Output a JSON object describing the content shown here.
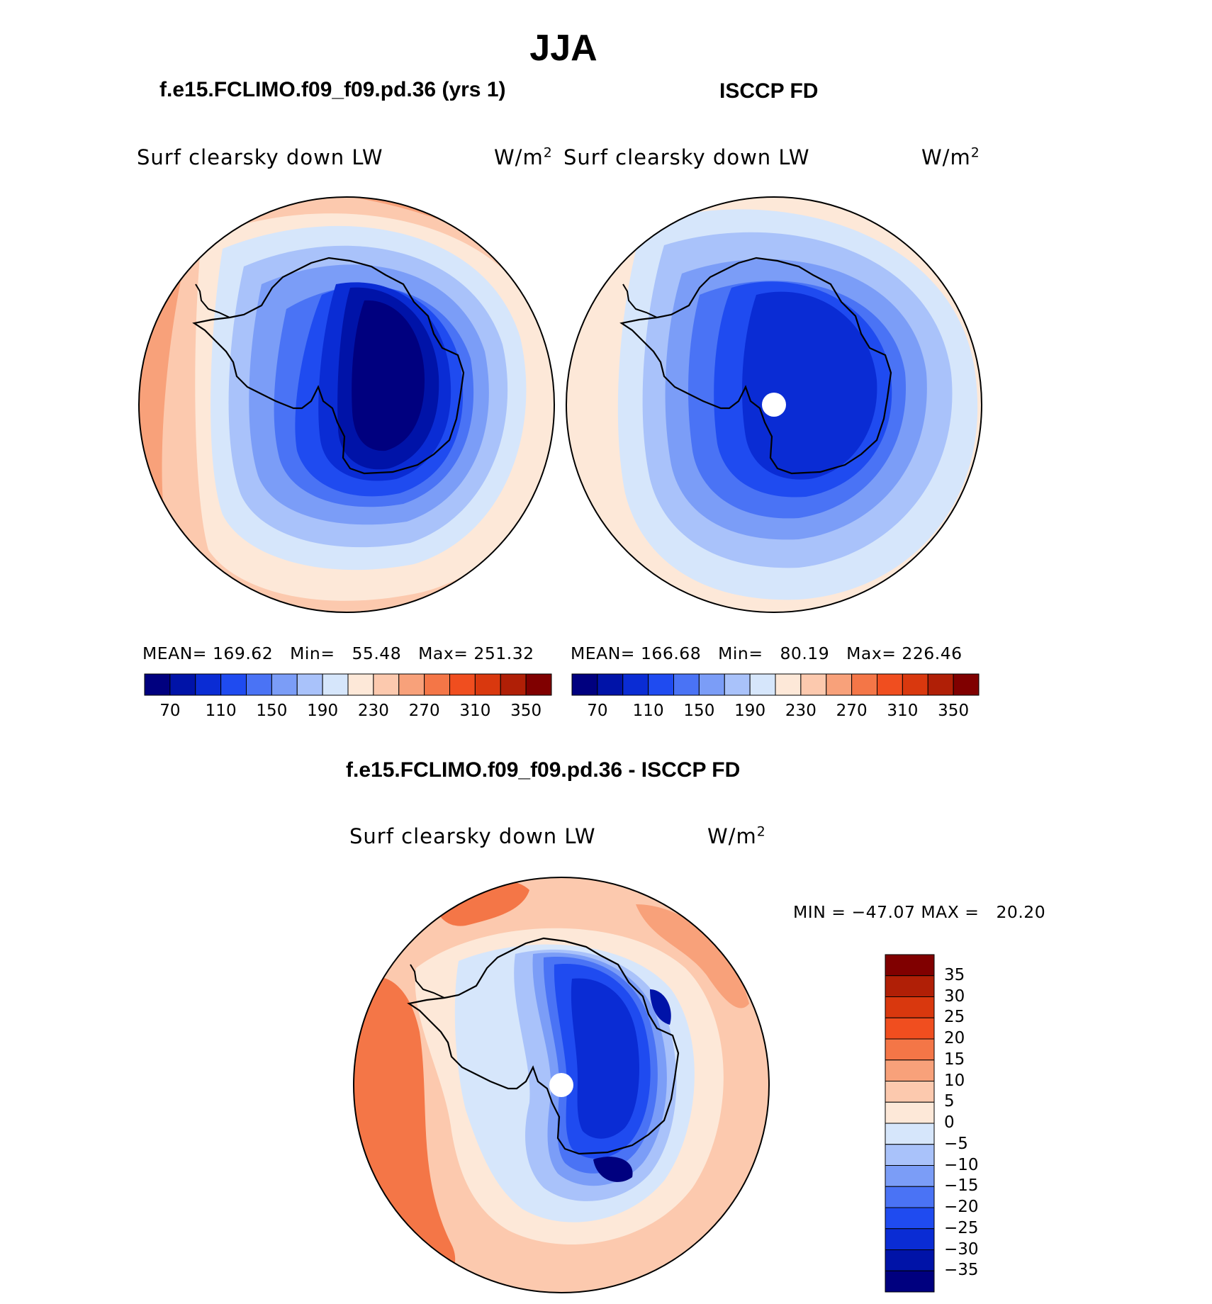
{
  "figure": {
    "season_title": "JJA",
    "left_title": "f.e15.FCLIMO.f09_f09.pd.36 (yrs 1)",
    "right_title": "ISCCP FD",
    "diff_title": "f.e15.FCLIMO.f09_f09.pd.36 - ISCCP FD"
  },
  "panels": {
    "model": {
      "variable": "Surf clearsky down LW",
      "units": "W/m",
      "units_exp": "2",
      "mean_label": "MEAN=",
      "mean_value": "169.62",
      "min_label": "Min=",
      "min_value": "55.48",
      "max_label": "Max=",
      "max_value": "251.32"
    },
    "obs": {
      "variable": "Surf clearsky down LW",
      "units": "W/m",
      "units_exp": "2",
      "mean_label": "MEAN=",
      "mean_value": "166.68",
      "min_label": "Min=",
      "min_value": "80.19",
      "max_label": "Max=",
      "max_value": "226.46"
    },
    "diff": {
      "variable": "Surf clearsky down LW",
      "units": "W/m",
      "units_exp": "2",
      "min_label": "MIN =",
      "min_value": "−47.07",
      "max_label": "MAX =",
      "max_value": "20.20"
    }
  },
  "colorbars": {
    "abs": {
      "colors": [
        "#00007f",
        "#0013a8",
        "#0a2cd4",
        "#1f4bf0",
        "#4a73f5",
        "#7b9df7",
        "#a9c2fa",
        "#d6e6fb",
        "#fde8d8",
        "#fcc9ae",
        "#f8a17a",
        "#f47647",
        "#f04e1f",
        "#d9380e",
        "#b01f06",
        "#800000"
      ],
      "tick_labels": [
        "70",
        "110",
        "150",
        "190",
        "230",
        "270",
        "310",
        "350"
      ]
    },
    "diff": {
      "colors": [
        "#00007f",
        "#0013a8",
        "#0a2cd4",
        "#1f4bf0",
        "#4a73f5",
        "#7b9df7",
        "#a9c2fa",
        "#d6e6fb",
        "#fde8d8",
        "#fcc9ae",
        "#f8a17a",
        "#f47647",
        "#f04e1f",
        "#d9380e",
        "#b01f06",
        "#800000"
      ],
      "tick_labels": [
        "35",
        "30",
        "25",
        "20",
        "15",
        "10",
        "5",
        "0",
        "−5",
        "−10",
        "−15",
        "−20",
        "−25",
        "−30",
        "−35"
      ]
    }
  },
  "map_colors": {
    "c0": "#00007f",
    "c1": "#0013a8",
    "c2": "#0a2cd4",
    "c3": "#1f4bf0",
    "c4": "#4a73f5",
    "c5": "#7b9df7",
    "c6": "#a9c2fa",
    "c7": "#d6e6fb",
    "w0": "#fde8d8",
    "w1": "#fcc9ae",
    "w2": "#f8a17a",
    "w3": "#f47647"
  }
}
